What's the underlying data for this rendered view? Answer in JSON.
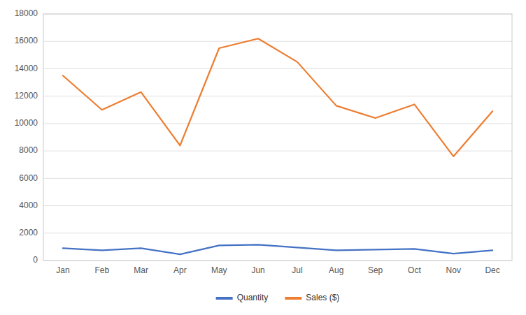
{
  "chart_data": {
    "type": "line",
    "categories": [
      "Jan",
      "Feb",
      "Mar",
      "Apr",
      "May",
      "Jun",
      "Jul",
      "Aug",
      "Sep",
      "Oct",
      "Nov",
      "Dec"
    ],
    "series": [
      {
        "name": "Quantity",
        "color": "#4472C4",
        "values": [
          900,
          750,
          900,
          450,
          1100,
          1150,
          950,
          750,
          800,
          850,
          500,
          750
        ]
      },
      {
        "name": "Sales ($)",
        "color": "#ED7D31",
        "values": [
          13500,
          11000,
          12300,
          8400,
          15500,
          16200,
          14500,
          11300,
          10400,
          11400,
          7600,
          10900
        ]
      }
    ],
    "ylim": [
      0,
      18000
    ],
    "yticks": [
      0,
      2000,
      4000,
      6000,
      8000,
      10000,
      12000,
      14000,
      16000,
      18000
    ],
    "grid": true,
    "legend": "bottom"
  }
}
